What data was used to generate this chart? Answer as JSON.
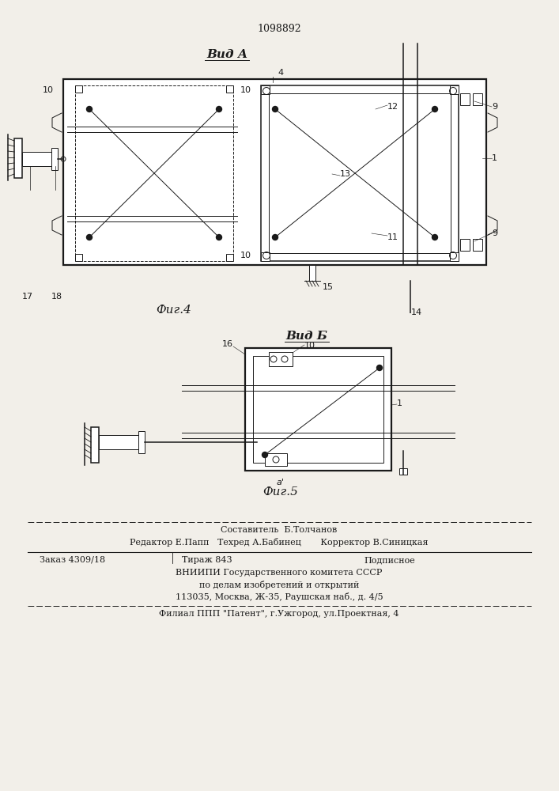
{
  "patent_number": "1098892",
  "fig4_label": "Вид А",
  "fig5_label": "Вид Б",
  "fig4_caption": "Фиг.4",
  "fig5_caption": "Фиг.5",
  "footer_line1": "Составитель  Б.Толчанов",
  "footer_line2": "Редактор Е.Папп   Техред А.Бабинец       Корректор В.Синицкая",
  "footer_line3_a": "Заказ 4309/18",
  "footer_line3_b": "Тираж 843",
  "footer_line3_c": "Подписное",
  "footer_line4": "ВНИИПИ Государственного комитета СССР",
  "footer_line5": "по делам изобретений и открытий",
  "footer_line6": "113035, Москва, Ж-35, Раушская наб., д. 4/5",
  "footer_line7": "Филиал ППП \"Патент\", г.Ужгород, ул.Проектная, 4",
  "bg_color": "#f2efe9",
  "line_color": "#1a1a1a"
}
